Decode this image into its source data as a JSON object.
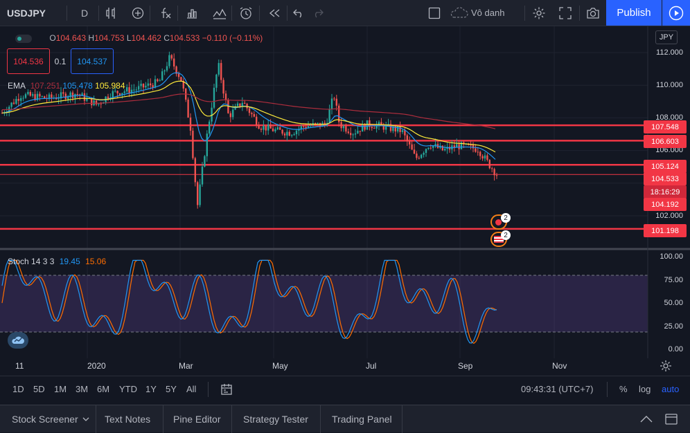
{
  "toolbar": {
    "symbol": "USDJPY",
    "interval": "D",
    "layout_name": "Vô danh",
    "publish_label": "Publish"
  },
  "legend": {
    "o_label": "O",
    "o_value": "104.643",
    "h_label": "H",
    "h_value": "104.753",
    "l_label": "L",
    "l_value": "104.462",
    "c_label": "C",
    "c_value": "104.533",
    "change": "−0.110 (−0.11%)",
    "sell_price": "104.536",
    "spread": "0.1",
    "buy_price": "104.537"
  },
  "ema": {
    "label": "EMA",
    "v1": "107.251",
    "v2": "105.478",
    "v3": "105.984",
    "color1": "#ad2d3d",
    "color2": "#2196f3",
    "color3": "#ffeb3b"
  },
  "stoch": {
    "label": "Stoch 14 3 3",
    "k": "19.45",
    "d": "15.06",
    "k_color": "#2196f3",
    "d_color": "#ff6d00"
  },
  "price_axis": {
    "currency": "JPY",
    "ticks": [
      "112.000",
      "110.000",
      "108.000",
      "106.000",
      "102.000"
    ],
    "tags": [
      {
        "label": "107.548",
        "color": "#f23645"
      },
      {
        "label": "106.603",
        "color": "#f23645"
      },
      {
        "label": "105.124",
        "color": "#f23645"
      },
      {
        "label": "104.533",
        "color": "#f23645"
      },
      {
        "label": "18:16:29",
        "color": "#f23645"
      },
      {
        "label": "104.192",
        "color": "#f23645"
      },
      {
        "label": "101.198",
        "color": "#f23645"
      }
    ]
  },
  "stoch_axis": {
    "ticks": [
      "100.00",
      "75.00",
      "50.00",
      "25.00",
      "0.00"
    ]
  },
  "time_axis": {
    "labels": [
      "11",
      "2020",
      "Mar",
      "May",
      "Jul",
      "Sep",
      "Nov"
    ]
  },
  "event_badges": [
    "2",
    "2"
  ],
  "range_bar": {
    "ranges": [
      "1D",
      "5D",
      "1M",
      "3M",
      "6M",
      "YTD",
      "1Y",
      "5Y",
      "All"
    ],
    "clock": "09:43:31 (UTC+7)",
    "percent": "%",
    "log": "log",
    "auto": "auto"
  },
  "bottom_tabs": [
    "Stock Screener",
    "Text Notes",
    "Pine Editor",
    "Strategy Tester",
    "Trading Panel"
  ],
  "icons": {
    "interval": "dropdown-icon",
    "compare": "compare-icon",
    "indicators": "fx-icon",
    "templates": "templates-icon",
    "alert": "alarm-icon",
    "replay": "replay-icon",
    "undo": "undo-icon",
    "redo": "redo-icon",
    "settings": "gear-icon",
    "fullscreen": "fullscreen-icon",
    "snapshot": "camera-icon"
  }
}
